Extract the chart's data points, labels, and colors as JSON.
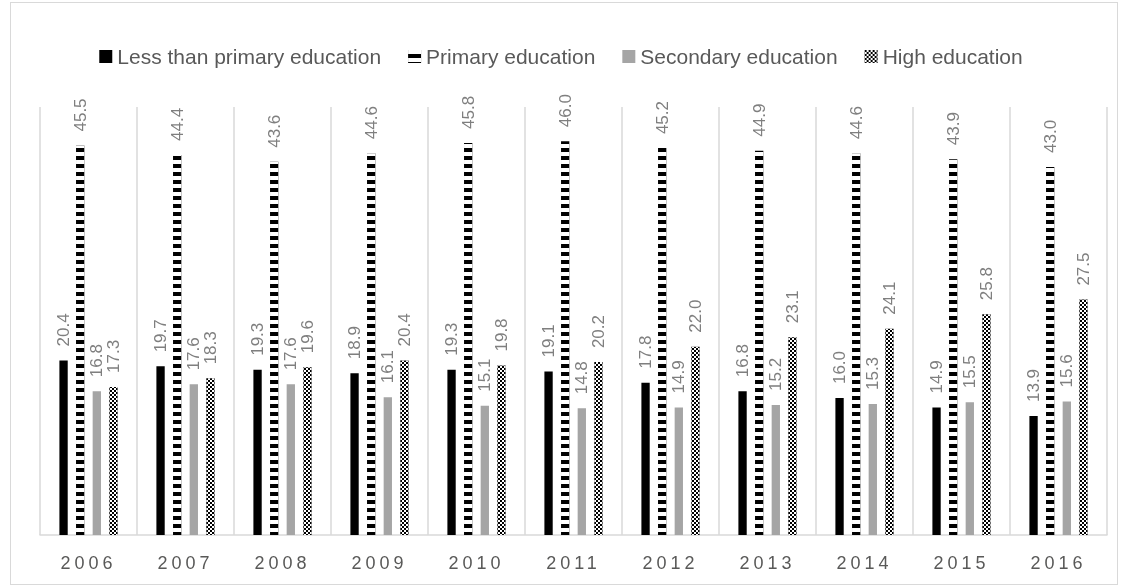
{
  "chart_data": {
    "type": "bar",
    "categories": [
      "2006",
      "2007",
      "2008",
      "2009",
      "2010",
      "2011",
      "2012",
      "2013",
      "2014",
      "2015",
      "2016"
    ],
    "series": [
      {
        "name": "Less than primary education",
        "color": "#000000",
        "values": [
          20.4,
          19.7,
          19.3,
          18.9,
          19.3,
          19.1,
          17.8,
          16.8,
          16.0,
          14.9,
          13.9
        ],
        "value_labels": [
          "20.4",
          "19.7",
          "19.3",
          "18.9",
          "19.3",
          "19.1",
          "17.8",
          "16.8",
          "16.0",
          "14.9",
          "13.9"
        ]
      },
      {
        "name": "Primary education",
        "color": "#000000",
        "values": [
          45.5,
          44.4,
          43.6,
          44.6,
          45.8,
          46.0,
          45.2,
          44.9,
          44.6,
          43.9,
          43.0
        ],
        "value_labels": [
          "45.5",
          "44.4",
          "43.6",
          "44.6",
          "45.8",
          "46.0",
          "45.2",
          "44.9",
          "44.6",
          "43.9",
          "43.0"
        ]
      },
      {
        "name": "Secondary education",
        "color": "#a5a5a5",
        "values": [
          16.8,
          17.6,
          17.6,
          16.1,
          15.1,
          14.8,
          14.9,
          15.2,
          15.3,
          15.5,
          15.6
        ],
        "value_labels": [
          "16.8",
          "17.6",
          "17.6",
          "16.1",
          "15.1",
          "14.8",
          "14.9",
          "15.2",
          "15.3",
          "15.5",
          "15.6"
        ]
      },
      {
        "name": "High education",
        "color": "#000000",
        "values": [
          17.3,
          18.3,
          19.6,
          20.4,
          19.8,
          20.2,
          22.0,
          23.1,
          24.1,
          25.8,
          27.5
        ],
        "value_labels": [
          "17.3",
          "18.3",
          "19.6",
          "20.4",
          "19.8",
          "20.2",
          "22.0",
          "23.1",
          "24.1",
          "25.8",
          "27.5"
        ]
      }
    ],
    "grid": "x",
    "legend": "top",
    "tick_labels": "x"
  }
}
